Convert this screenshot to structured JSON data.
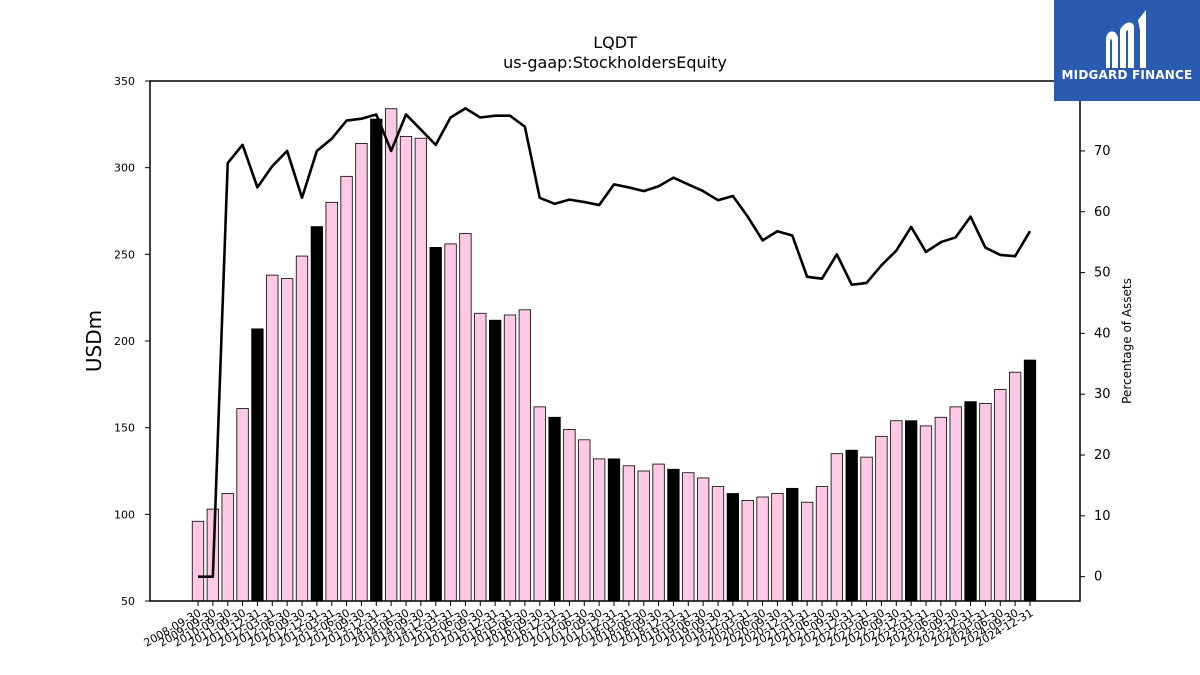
{
  "chart_data": {
    "type": "bar",
    "title": "LQDT",
    "subtitle": "us-gaap:StockholdersEquity",
    "ylabel": "USDm",
    "y2label": "Percentage of Assets",
    "ylim": [
      50,
      350
    ],
    "y2lim": [
      -4,
      81.5
    ],
    "yticks": [
      50,
      100,
      150,
      200,
      250,
      300,
      350
    ],
    "y2ticks": [
      0,
      10,
      20,
      30,
      40,
      50,
      60,
      70
    ],
    "colors": {
      "bar_q": "#ffc8e4",
      "bar_fy": "#000000",
      "line": "#000000"
    },
    "categories": [
      "2008-09-30",
      "2009-09-30",
      "2010-09-30",
      "2011-09-30",
      "2011-12-31",
      "2012-03-31",
      "2012-06-30",
      "2012-09-30",
      "2012-12-31",
      "2013-03-31",
      "2013-06-30",
      "2013-09-30",
      "2013-12-31",
      "2014-03-31",
      "2014-06-30",
      "2014-09-30",
      "2014-12-31",
      "2015-03-31",
      "2015-06-30",
      "2015-09-30",
      "2015-12-31",
      "2016-03-31",
      "2016-06-30",
      "2016-09-30",
      "2016-12-31",
      "2017-03-31",
      "2017-06-30",
      "2017-09-30",
      "2017-12-31",
      "2018-03-31",
      "2018-06-30",
      "2018-09-30",
      "2018-12-31",
      "2019-03-31",
      "2019-06-30",
      "2019-09-30",
      "2019-12-31",
      "2020-03-31",
      "2020-06-30",
      "2020-09-30",
      "2020-12-31",
      "2021-03-31",
      "2021-06-30",
      "2021-09-30",
      "2021-12-31",
      "2022-03-31",
      "2022-06-30",
      "2022-09-30",
      "2022-12-31",
      "2023-03-31",
      "2023-06-30",
      "2023-09-30",
      "2023-12-31",
      "2024-03-31",
      "2024-06-30",
      "2024-09-30",
      "2024-12-31"
    ],
    "series": [
      {
        "type": "bar",
        "values": [
          96,
          103,
          112,
          161,
          207,
          238,
          236,
          249,
          266,
          280,
          295,
          314,
          328,
          334,
          318,
          317,
          254,
          256,
          262,
          216,
          212,
          215,
          218,
          162,
          156,
          149,
          143,
          132,
          132,
          128,
          125,
          129,
          126,
          124,
          121,
          116,
          112,
          108,
          110,
          112,
          115,
          107,
          116,
          135,
          137,
          133,
          145,
          154,
          154,
          151,
          156,
          162,
          165,
          164,
          172,
          182,
          189
        ],
        "annual": [
          false,
          false,
          false,
          false,
          true,
          false,
          false,
          false,
          true,
          false,
          false,
          false,
          true,
          false,
          false,
          false,
          true,
          false,
          false,
          false,
          true,
          false,
          false,
          false,
          true,
          false,
          false,
          false,
          true,
          false,
          false,
          false,
          true,
          false,
          false,
          false,
          true,
          false,
          false,
          false,
          true,
          false,
          false,
          false,
          true,
          false,
          false,
          false,
          true,
          false,
          false,
          false,
          true,
          false,
          false,
          false,
          true
        ]
      },
      {
        "type": "line",
        "axis": "right",
        "values": [
          0,
          0,
          68,
          71,
          64,
          67.5,
          70,
          62.3,
          70,
          72,
          75,
          75.3,
          76,
          70,
          76,
          73.5,
          71,
          75.5,
          77,
          75.5,
          75.8,
          75.8,
          74,
          62.3,
          61.3,
          62,
          61.6,
          61.1,
          64.5,
          64,
          63.4,
          64.2,
          65.6,
          64.5,
          63.4,
          61.9,
          62.6,
          59.2,
          55.3,
          56.8,
          56.1,
          49.3,
          49,
          53,
          48,
          48.3,
          51.2,
          53.6,
          57.5,
          53.4,
          55,
          55.8,
          59.2,
          54.1,
          52.9,
          52.7,
          56.8
        ]
      }
    ]
  },
  "logo": {
    "text": "MIDGARD FINANCE"
  }
}
